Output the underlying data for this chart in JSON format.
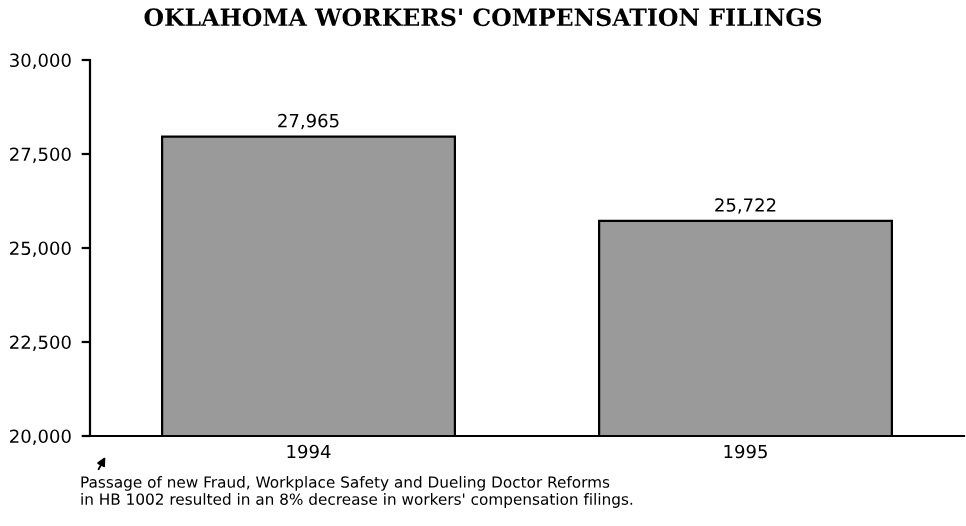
{
  "chart_data": {
    "type": "bar",
    "title": "OKLAHOMA WORKERS' COMPENSATION FILINGS",
    "categories": [
      "1994",
      "1995"
    ],
    "values": [
      27965,
      25722
    ],
    "color": "#9a9a9a",
    "ylim": [
      20000,
      30000
    ],
    "yticks": [
      {
        "value": 20000,
        "label": "20,000"
      },
      {
        "value": 22500,
        "label": "22,500"
      },
      {
        "value": 25000,
        "label": "25,000"
      },
      {
        "value": 27500,
        "label": "27,500"
      },
      {
        "value": 30000,
        "label": "30,000"
      }
    ],
    "value_labels": [
      "27,965",
      "25,722"
    ],
    "grid": false,
    "legend": false,
    "annotations": [
      "Passage of new Fraud, Workplace Safety and Dueling Doctor Reforms\nin HB 1002 resulted in an 8% decrease in workers' compensation filings."
    ]
  }
}
